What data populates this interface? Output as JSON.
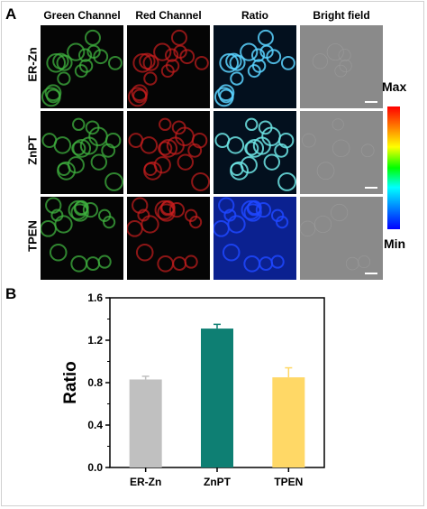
{
  "panel_a": {
    "letter": "A",
    "columns": [
      "Green Channel",
      "Red Channel",
      "Ratio",
      "Bright field"
    ],
    "rows": [
      "ER-Zn",
      "ZnPT",
      "TPEN"
    ],
    "colorbar": {
      "max": "Max",
      "min": "Min"
    },
    "colors": {
      "green": "#3fb23f",
      "red": "#c81e1e",
      "ratio_er_zn": "#5ad2ff",
      "ratio_znpt": "#6ee6e6",
      "ratio_tpen": "#1e46ff",
      "bright": "#8a8a8a"
    }
  },
  "panel_b": {
    "letter": "B"
  },
  "chart_data": {
    "type": "bar",
    "categories": [
      "ER-Zn",
      "ZnPT",
      "TPEN"
    ],
    "values": [
      0.83,
      1.31,
      0.85
    ],
    "errors": [
      0.03,
      0.04,
      0.09
    ],
    "bar_colors": [
      "#c0c0c0",
      "#0e7f73",
      "#ffd866"
    ],
    "ylabel": "Ratio",
    "xlabel": "",
    "ylim": [
      0.0,
      1.6
    ],
    "yticks": [
      "0.0",
      "0.4",
      "0.8",
      "1.2",
      "1.6"
    ],
    "grid": false
  }
}
